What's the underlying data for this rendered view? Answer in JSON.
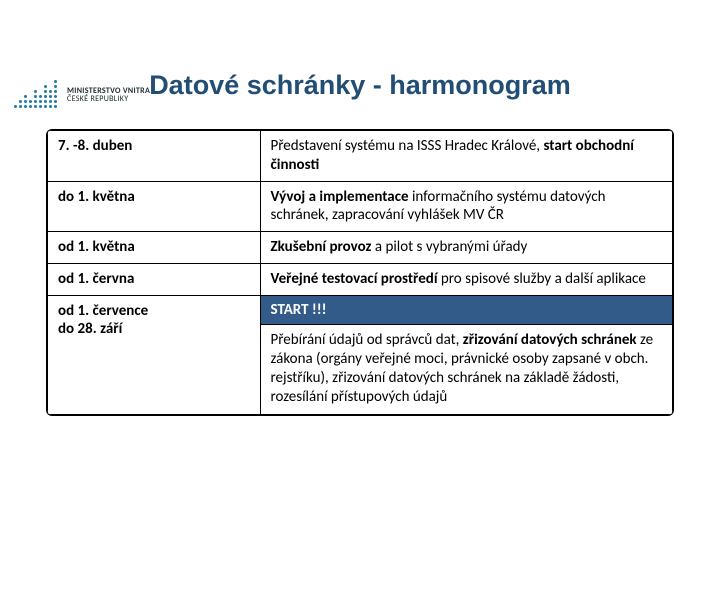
{
  "logo": {
    "line1": "MINISTERSTVO VNITRA",
    "line2": "ČESKÉ REPUBLIKY",
    "color": "#1f7ca8",
    "text_color": "#1f2a2f",
    "dot_columns": [
      1,
      2,
      3,
      2,
      4,
      3,
      5,
      4,
      6
    ]
  },
  "title": {
    "text": "Datové schránky - harmonogram",
    "color": "#224e75",
    "fontsize": 27
  },
  "table": {
    "font_size": 15,
    "rows": [
      {
        "date": "7. -8. duben",
        "desc_pre": "Představení systému na ISSS Hradec Králové, ",
        "desc_bold": "start obchodní činnosti",
        "desc_post": ""
      },
      {
        "date": "do 1. května",
        "desc_pre": "",
        "desc_bold": "Vývoj a implementace",
        "desc_post": " informačního systému datových schránek, zapracování vyhlášek MV ČR"
      },
      {
        "date": "od 1. května",
        "desc_pre": "",
        "desc_bold": "Zkušební provoz",
        "desc_post": " a pilot s vybranými úřady"
      },
      {
        "date": "od 1. června",
        "desc_pre": "",
        "desc_bold": "Veřejné testovací prostředí",
        "desc_post": " pro spisové služby a další aplikace"
      }
    ],
    "last_row": {
      "date_line1": "od 1. července",
      "date_line2": "do 28. září",
      "start_label": "START  !!!",
      "start_bg": "#325b8a",
      "desc_parts": [
        {
          "t": "Přebírání údajů od správců dat, ",
          "b": false
        },
        {
          "t": "zřizování datových schránek ",
          "b": true
        },
        {
          "t": "ze zákona (orgány veřejné moci, právnické osoby zapsané v obch. rejstříku), zřizování datových schránek na základě žádosti, rozesílání přístupových údajů",
          "b": false
        }
      ]
    }
  }
}
